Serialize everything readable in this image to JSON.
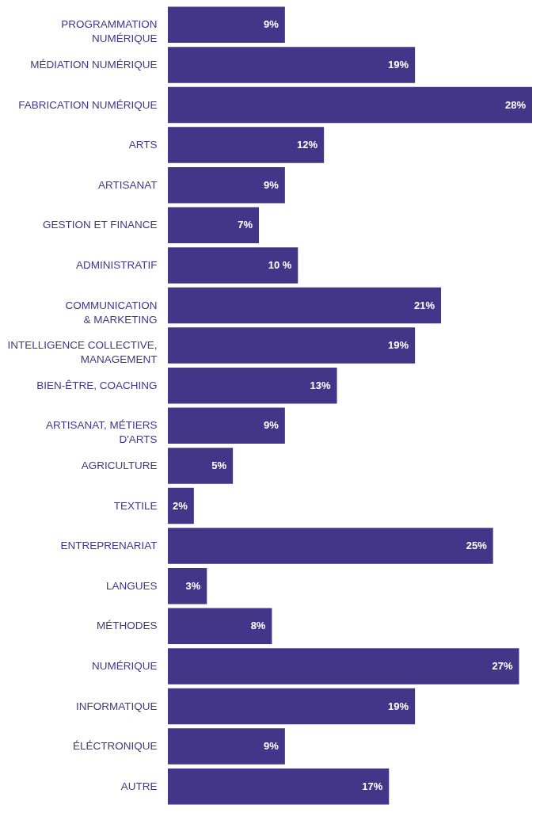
{
  "chart_data": {
    "type": "bar",
    "orientation": "horizontal",
    "color": "#433689",
    "categories": [
      "PROGRAMMATION\nNUMÉRIQUE",
      "MÉDIATION NUMÉRIQUE",
      "FABRICATION NUMÉRIQUE",
      "ARTS",
      "ARTISANAT",
      "GESTION ET FINANCE",
      "ADMINISTRATIF",
      "COMMUNICATION\n& MARKETING",
      "INTELLIGENCE COLLECTIVE,\nMANAGEMENT",
      "BIEN-ÊTRE, COACHING",
      "ARTISANAT, MÉTIERS\nD'ARTS",
      "AGRICULTURE",
      "TEXTILE",
      "ENTREPRENARIAT",
      "LANGUES",
      "MÉTHODES",
      "NUMÉRIQUE",
      "INFORMATIQUE",
      "ÉLÉCTRONIQUE",
      "AUTRE"
    ],
    "values": [
      9,
      19,
      28,
      12,
      9,
      7,
      10,
      21,
      19,
      13,
      9,
      5,
      2,
      25,
      3,
      8,
      27,
      19,
      9,
      17
    ],
    "value_labels": [
      "9%",
      "19%",
      "28%",
      "12%",
      "9%",
      "7%",
      "10 %",
      "21%",
      "19%",
      "13%",
      "9%",
      "5%",
      "2%",
      "25%",
      "3%",
      "8%",
      "27%",
      "19%",
      "9%",
      "17%"
    ]
  }
}
